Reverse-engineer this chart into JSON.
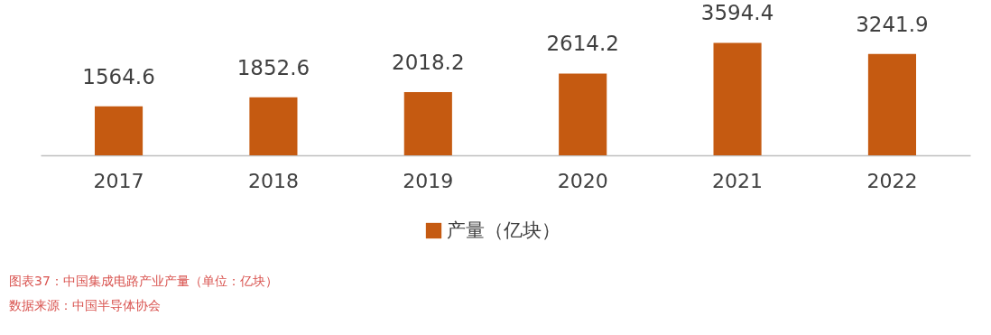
{
  "chart_data": {
    "type": "bar",
    "categories": [
      "2017",
      "2018",
      "2019",
      "2020",
      "2021",
      "2022"
    ],
    "series": [
      {
        "name": "产量（亿块）",
        "color": "#c55a11",
        "values": [
          1564.6,
          1852.6,
          2018.2,
          2614.2,
          3594.4,
          3241.9
        ]
      }
    ],
    "tick_labels": "x",
    "data_labels": true,
    "legend": "bottom",
    "grid": false,
    "annotations": [
      "图表37：中国集成电路产业产量（单位：亿块）",
      "数据来源：中国半导体协会"
    ]
  }
}
